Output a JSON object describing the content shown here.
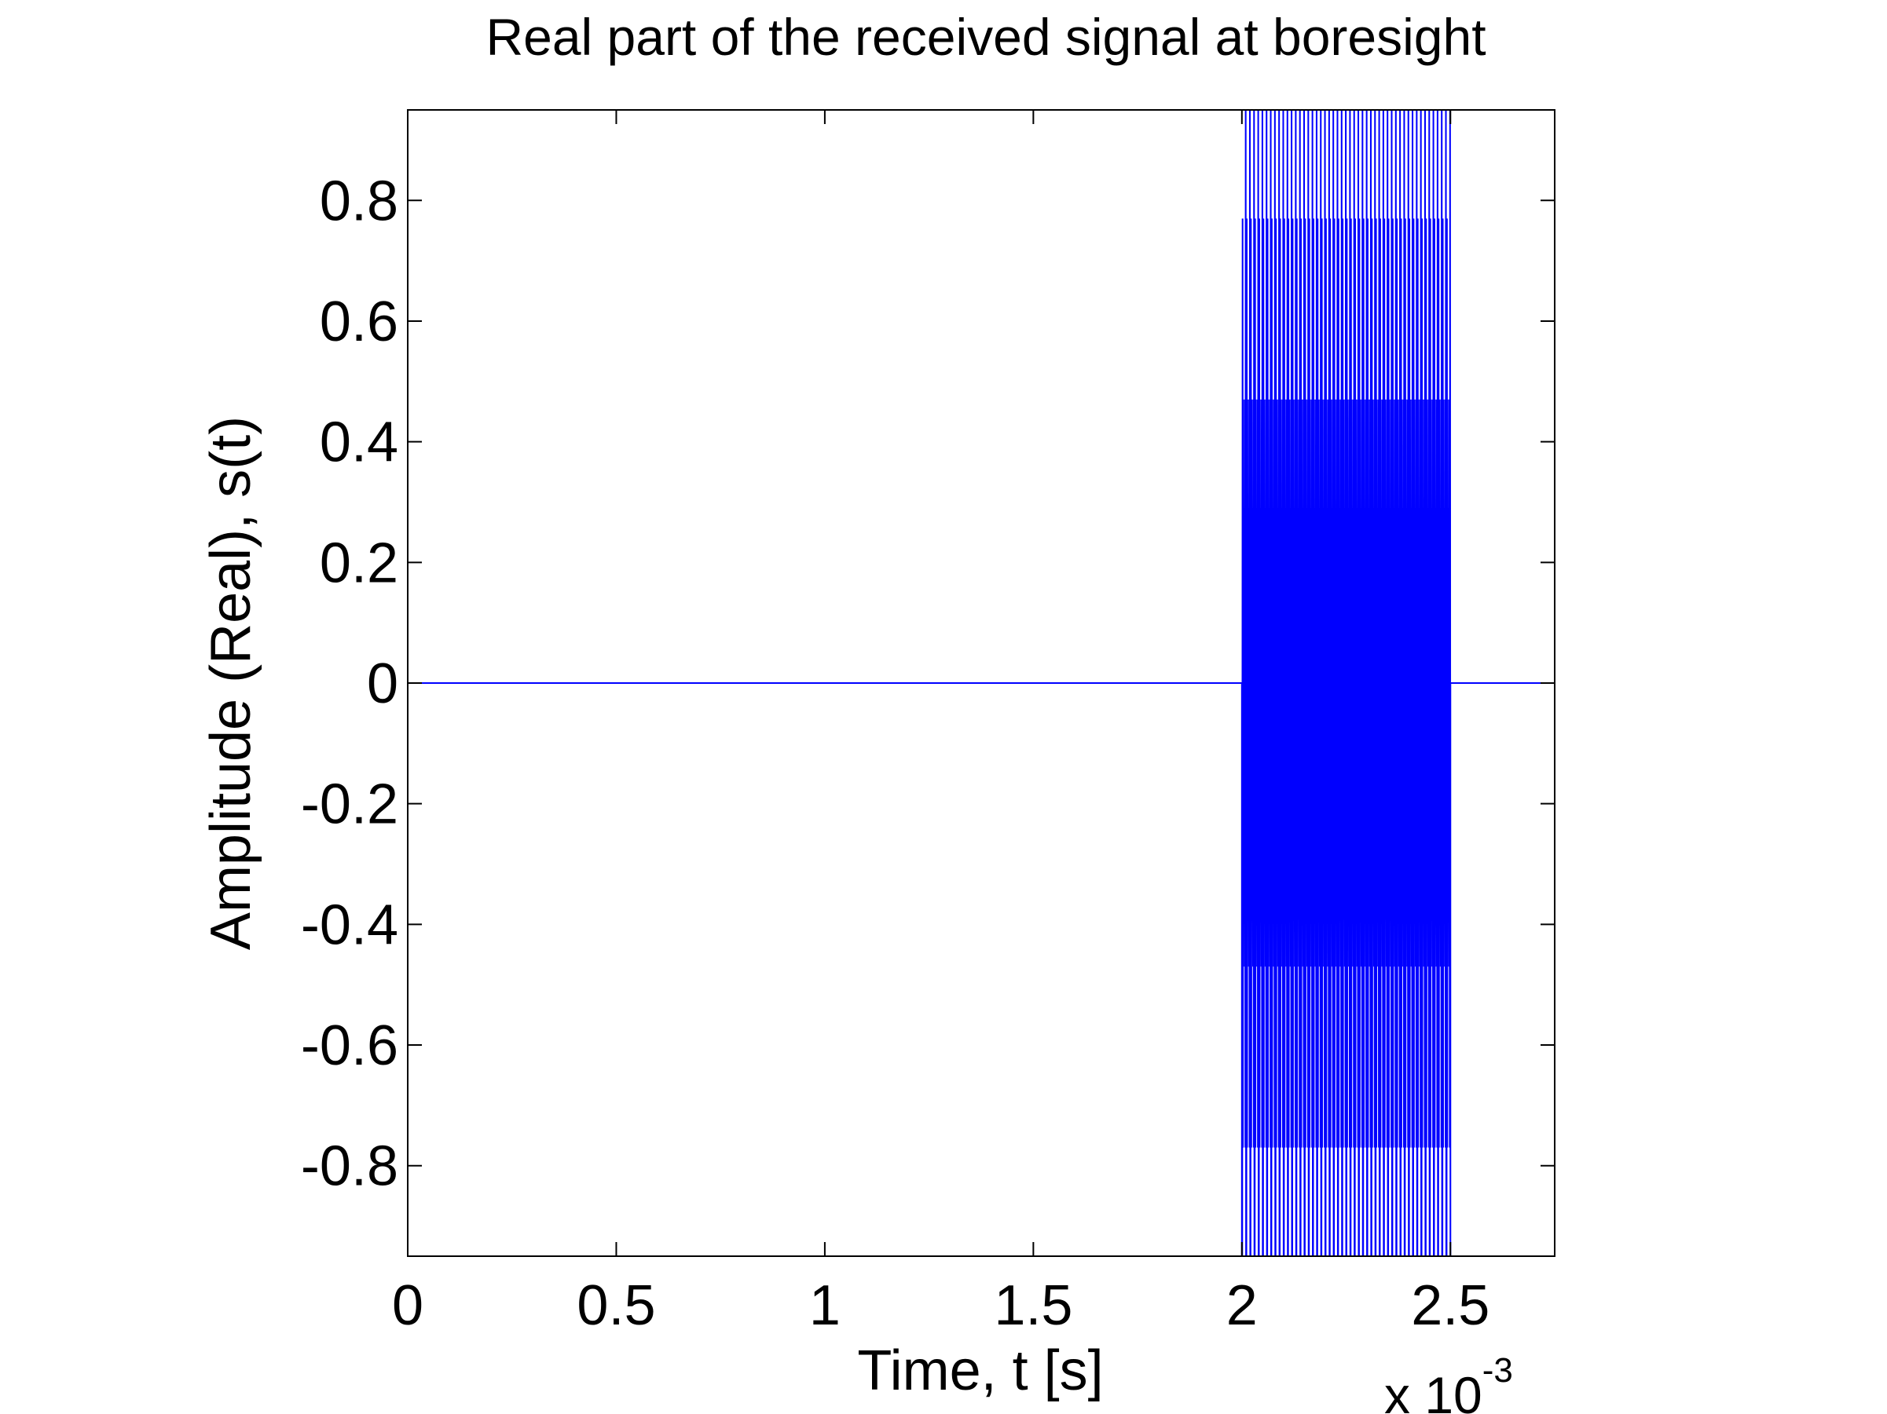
{
  "chart_data": {
    "type": "line",
    "title": "Real part of the received signal at boresight",
    "xlabel": "Time, t [s]",
    "ylabel": "Amplitude (Real), s(t)",
    "x_multiplier": {
      "base": "x 10",
      "exponent": "-3"
    },
    "xlim": [
      0,
      2.75
    ],
    "ylim": [
      -0.95,
      0.95
    ],
    "x_ticks": [
      0,
      0.5,
      1,
      1.5,
      2,
      2.5
    ],
    "x_tick_labels": [
      "0",
      "0.5",
      "1",
      "1.5",
      "2",
      "2.5"
    ],
    "y_ticks": [
      -0.8,
      -0.6,
      -0.4,
      -0.2,
      0,
      0.2,
      0.4,
      0.6,
      0.8
    ],
    "y_tick_labels": [
      "-0.8",
      "-0.6",
      "-0.4",
      "-0.2",
      "0",
      "0.2",
      "0.4",
      "0.6",
      "0.8"
    ],
    "grid": false,
    "legend": "none",
    "line_color": "#0000ff",
    "series": [
      {
        "pulse_start": 2.0,
        "pulse_end": 2.5,
        "baseline": 0,
        "amplitude": 1.0,
        "carrier_cycles": 200,
        "sample_levels": [
          -1,
          -0.77,
          -0.47,
          0,
          0.29,
          0.47,
          0.77,
          1
        ]
      }
    ]
  }
}
